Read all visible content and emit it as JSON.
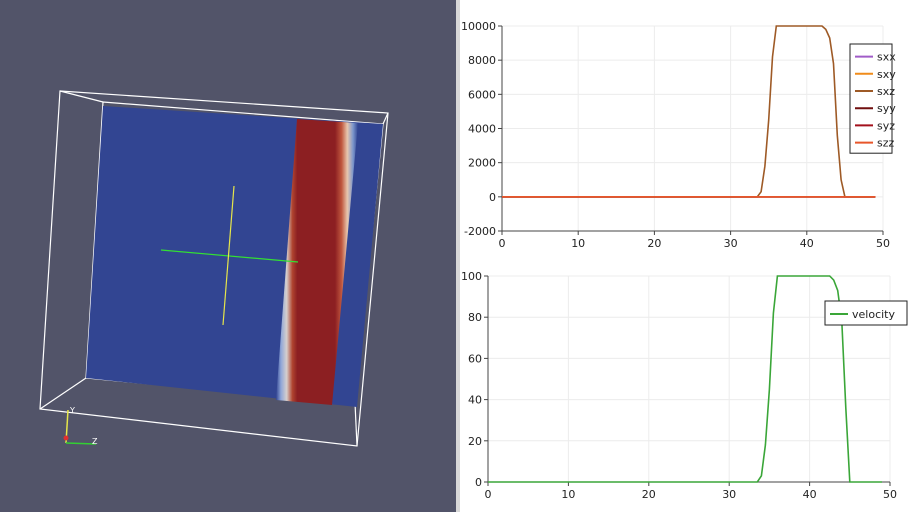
{
  "viewport": {
    "orientation_axes": {
      "y_label": "Y",
      "z_label": "Z"
    }
  },
  "chart_data": [
    {
      "type": "line",
      "xlim": [
        0,
        50
      ],
      "ylim": [
        -2000,
        10000
      ],
      "xticks": [
        "0",
        "10",
        "20",
        "30",
        "40",
        "50"
      ],
      "yticks": [
        "-2000",
        "0",
        "2000",
        "4000",
        "6000",
        "8000",
        "10000"
      ],
      "grid": true,
      "legend_position": "right",
      "x": [
        0,
        33.5,
        34,
        34.5,
        35,
        35.5,
        36,
        36.5,
        42,
        42.5,
        43,
        43.5,
        44,
        44.5,
        45,
        49
      ],
      "series": [
        {
          "name": "sxx",
          "color": "#a05cc8",
          "values": [
            0,
            0,
            0,
            0,
            0,
            0,
            0,
            0,
            0,
            0,
            0,
            0,
            0,
            0,
            0,
            0
          ]
        },
        {
          "name": "sxy",
          "color": "#f08c1a",
          "values": [
            0,
            0,
            0,
            0,
            0,
            0,
            0,
            0,
            0,
            0,
            0,
            0,
            0,
            0,
            0,
            0
          ]
        },
        {
          "name": "sxz",
          "color": "#9e5a26",
          "values": [
            0,
            0,
            300,
            1800,
            4500,
            8200,
            10000,
            10000,
            10000,
            9800,
            9300,
            7800,
            3600,
            1000,
            0,
            0
          ]
        },
        {
          "name": "syy",
          "color": "#700f0f",
          "values": [
            0,
            0,
            0,
            0,
            0,
            0,
            0,
            0,
            0,
            0,
            0,
            0,
            0,
            0,
            0,
            0
          ]
        },
        {
          "name": "syz",
          "color": "#a3101c",
          "values": [
            0,
            0,
            0,
            0,
            0,
            0,
            0,
            0,
            0,
            0,
            0,
            0,
            0,
            0,
            0,
            0
          ]
        },
        {
          "name": "szz",
          "color": "#e8562a",
          "values": [
            0,
            0,
            0,
            0,
            0,
            0,
            0,
            0,
            0,
            0,
            0,
            0,
            0,
            0,
            0,
            0
          ]
        }
      ]
    },
    {
      "type": "line",
      "xlim": [
        0,
        50
      ],
      "ylim": [
        0,
        100
      ],
      "xticks": [
        "0",
        "10",
        "20",
        "30",
        "40",
        "50"
      ],
      "yticks": [
        "0",
        "20",
        "40",
        "60",
        "80",
        "100"
      ],
      "grid": true,
      "legend_position": "top-right",
      "x": [
        0,
        33.5,
        34,
        34.5,
        35,
        35.5,
        36,
        36.5,
        42.5,
        43,
        43.5,
        44,
        44.5,
        45,
        49
      ],
      "series": [
        {
          "name": "velocity",
          "color": "#3aa638",
          "values": [
            0,
            0,
            3,
            18,
            45,
            82,
            100,
            100,
            100,
            98,
            93,
            78,
            36,
            0,
            0
          ]
        }
      ]
    }
  ]
}
